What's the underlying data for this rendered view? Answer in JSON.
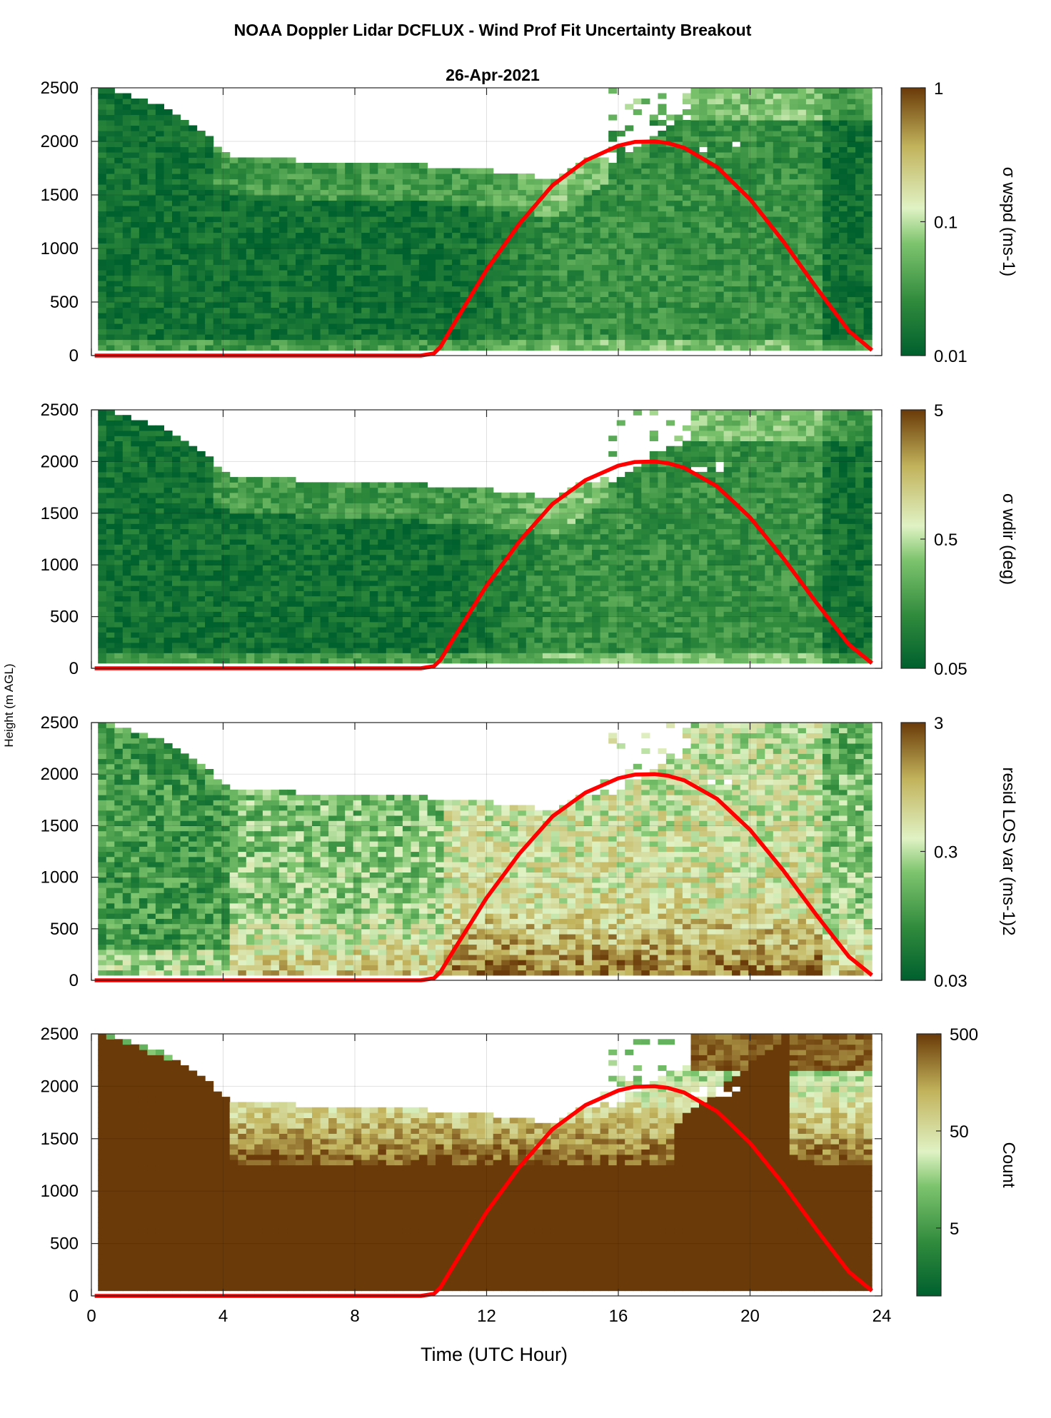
{
  "figure": {
    "title": "NOAA Doppler Lidar DCFLUX - Wind Prof Fit Uncertainty Breakout",
    "subtitle": "26-Apr-2021",
    "xlabel": "Time (UTC Hour)",
    "ylabel": "Height (m AGL)"
  },
  "chart_data": [
    {
      "type": "heatmap",
      "panel": "sigma-wspd",
      "colorbar_label": "σ wspd (ms-1)",
      "colorbar_scale": "log",
      "colorbar_range": [
        0.01,
        1
      ],
      "colorbar_ticks": [
        "0.01",
        "0.1",
        "1"
      ],
      "xlim": [
        0,
        24
      ],
      "ylim": [
        0,
        2500
      ],
      "xticks": [
        "0",
        "4",
        "8",
        "12",
        "16",
        "20",
        "24"
      ],
      "yticks": [
        "0",
        "500",
        "1000",
        "1500",
        "2000",
        "2500"
      ],
      "grid": true
    },
    {
      "type": "heatmap",
      "panel": "sigma-wdir",
      "colorbar_label": "σ wdir (deg)",
      "colorbar_scale": "log",
      "colorbar_range": [
        0.05,
        5
      ],
      "colorbar_ticks": [
        "0.05",
        "0.5",
        "5"
      ],
      "xlim": [
        0,
        24
      ],
      "ylim": [
        0,
        2500
      ],
      "xticks": [
        "0",
        "4",
        "8",
        "12",
        "16",
        "20",
        "24"
      ],
      "yticks": [
        "0",
        "500",
        "1000",
        "1500",
        "2000",
        "2500"
      ],
      "grid": true
    },
    {
      "type": "heatmap",
      "panel": "resid-los-var",
      "colorbar_label": "resid LOS var (ms-1)2",
      "colorbar_scale": "log",
      "colorbar_range": [
        0.03,
        3
      ],
      "colorbar_ticks": [
        "0.03",
        "0.3",
        "3"
      ],
      "xlim": [
        0,
        24
      ],
      "ylim": [
        0,
        2500
      ],
      "xticks": [
        "0",
        "4",
        "8",
        "12",
        "16",
        "20",
        "24"
      ],
      "yticks": [
        "0",
        "500",
        "1000",
        "1500",
        "2000",
        "2500"
      ],
      "grid": true
    },
    {
      "type": "heatmap",
      "panel": "count",
      "colorbar_label": "Count",
      "colorbar_scale": "log",
      "colorbar_range": [
        1,
        500
      ],
      "colorbar_ticks": [
        "5",
        "50",
        "500"
      ],
      "xlim": [
        0,
        24
      ],
      "ylim": [
        0,
        2500
      ],
      "xticks": [
        "0",
        "4",
        "8",
        "12",
        "16",
        "20",
        "24"
      ],
      "yticks": [
        "0",
        "500",
        "1000",
        "1500",
        "2000",
        "2500"
      ],
      "grid": true
    }
  ],
  "overlay_curve": {
    "color": "#ff0000",
    "x": [
      0.1,
      1,
      2,
      3,
      4,
      5,
      6,
      7,
      8,
      9,
      10,
      10.4,
      10.6,
      11,
      12,
      13,
      14,
      15,
      16,
      16.5,
      17.1,
      17.5,
      18,
      19,
      20,
      21,
      22,
      23,
      23.7
    ],
    "y": [
      0,
      0,
      0,
      0,
      0,
      0,
      0,
      0,
      0,
      0,
      0,
      20,
      80,
      290,
      800,
      1230,
      1590,
      1820,
      1960,
      1995,
      2000,
      1985,
      1940,
      1760,
      1460,
      1070,
      640,
      230,
      50
    ]
  },
  "colormap": [
    "#00602e",
    "#2f8a3c",
    "#7ec46e",
    "#e0f2c4",
    "#c2b35c",
    "#6a3a08"
  ]
}
